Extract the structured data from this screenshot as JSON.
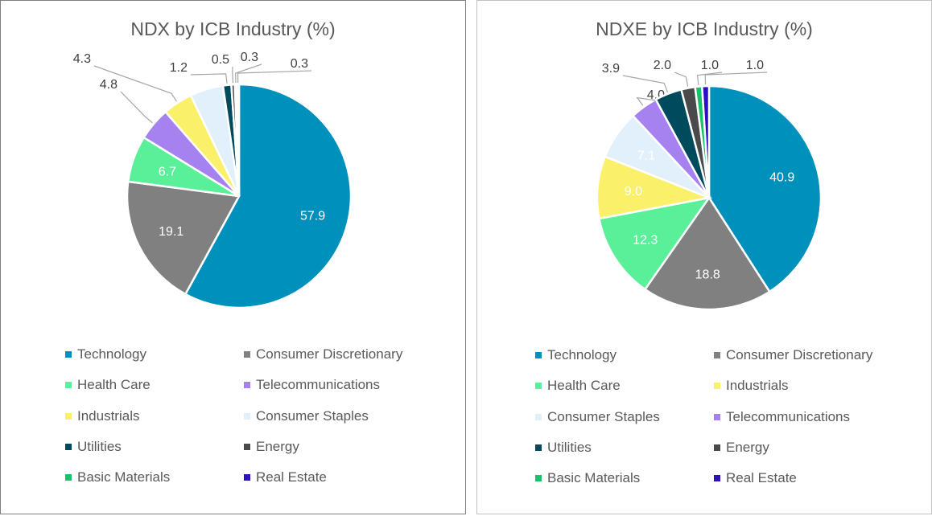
{
  "chart_data": [
    {
      "type": "pie",
      "title": "NDX by ICB Industry (%)",
      "slices": [
        {
          "name": "Technology",
          "value": 57.9,
          "color": "#0090BC",
          "label": "57.9"
        },
        {
          "name": "Consumer Discretionary",
          "value": 19.1,
          "color": "#808080",
          "label": "19.1"
        },
        {
          "name": "Health Care",
          "value": 6.7,
          "color": "#5AF09A",
          "label": "6.7"
        },
        {
          "name": "Telecommunications",
          "value": 4.8,
          "color": "#A582F0",
          "label": "4.8"
        },
        {
          "name": "Industrials",
          "value": 4.3,
          "color": "#FAF069",
          "label": "4.3"
        },
        {
          "name": "Consumer Staples",
          "value": 4.8,
          "color": "#E2F0FC",
          "label": ""
        },
        {
          "name": "Utilities",
          "value": 1.2,
          "color": "#004A5E",
          "label": "1.2"
        },
        {
          "name": "Energy",
          "value": 0.5,
          "color": "#4A4A4A",
          "label": "0.5"
        },
        {
          "name": "Basic Materials",
          "value": 0.3,
          "color": "#18C26B",
          "label": "0.3"
        },
        {
          "name": "Real Estate",
          "value": 0.3,
          "color": "#2A0EC8",
          "label": "0.3"
        }
      ],
      "legend": [
        "Technology",
        "Consumer Discretionary",
        "Health Care",
        "Telecommunications",
        "Industrials",
        "Consumer Staples",
        "Utilities",
        "Energy",
        "Basic Materials",
        "Real Estate"
      ],
      "legend_placement": "bottom"
    },
    {
      "type": "pie",
      "title": "NDXE by ICB Industry (%)",
      "slices": [
        {
          "name": "Technology",
          "value": 40.9,
          "color": "#0090BC",
          "label": "40.9"
        },
        {
          "name": "Consumer Discretionary",
          "value": 18.8,
          "color": "#808080",
          "label": "18.8"
        },
        {
          "name": "Health Care",
          "value": 12.3,
          "color": "#5AF09A",
          "label": "12.3"
        },
        {
          "name": "Industrials",
          "value": 9.0,
          "color": "#FAF069",
          "label": "9.0"
        },
        {
          "name": "Consumer Staples",
          "value": 7.1,
          "color": "#E2F0FC",
          "label": "7.1"
        },
        {
          "name": "Telecommunications",
          "value": 4.0,
          "color": "#A582F0",
          "label": "4.0"
        },
        {
          "name": "Utilities",
          "value": 3.9,
          "color": "#004A5E",
          "label": "3.9"
        },
        {
          "name": "Energy",
          "value": 2.0,
          "color": "#4A4A4A",
          "label": "2.0"
        },
        {
          "name": "Basic Materials",
          "value": 1.0,
          "color": "#18C26B",
          "label": "1.0"
        },
        {
          "name": "Real Estate",
          "value": 1.0,
          "color": "#2A0EC8",
          "label": "1.0"
        }
      ],
      "legend": [
        "Technology",
        "Consumer Discretionary",
        "Health Care",
        "Industrials",
        "Consumer Staples",
        "Telecommunications",
        "Utilities",
        "Energy",
        "Basic Materials",
        "Real Estate"
      ],
      "legend_placement": "bottom"
    }
  ]
}
